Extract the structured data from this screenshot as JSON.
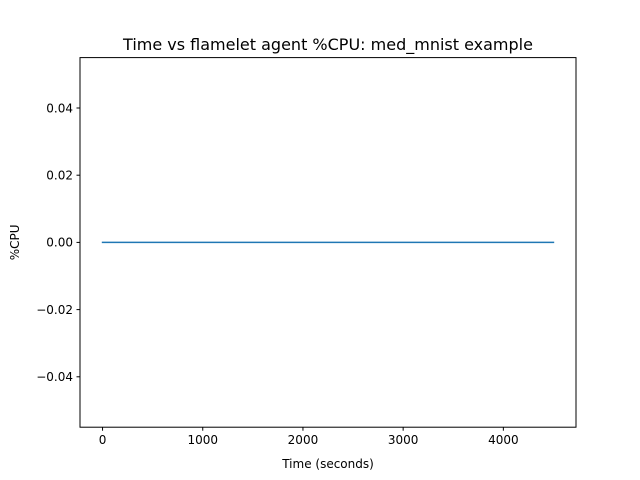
{
  "chart_data": {
    "type": "line",
    "title": "Time vs flamelet agent %CPU: med_mnist example",
    "xlabel": "Time (seconds)",
    "ylabel": "%CPU",
    "xlim": [
      -225,
      4725
    ],
    "ylim": [
      -0.055,
      0.055
    ],
    "x_ticks": [
      0,
      1000,
      2000,
      3000,
      4000
    ],
    "x_tick_labels": [
      "0",
      "1000",
      "2000",
      "3000",
      "4000"
    ],
    "y_ticks": [
      -0.04,
      -0.02,
      0.0,
      0.02,
      0.04
    ],
    "y_tick_labels": [
      "−0.04",
      "−0.02",
      "0.00",
      "0.02",
      "0.04"
    ],
    "grid": false,
    "series": [
      {
        "color": "#1f77b4",
        "x": [
          0,
          4500
        ],
        "y": [
          0,
          0
        ]
      }
    ]
  }
}
